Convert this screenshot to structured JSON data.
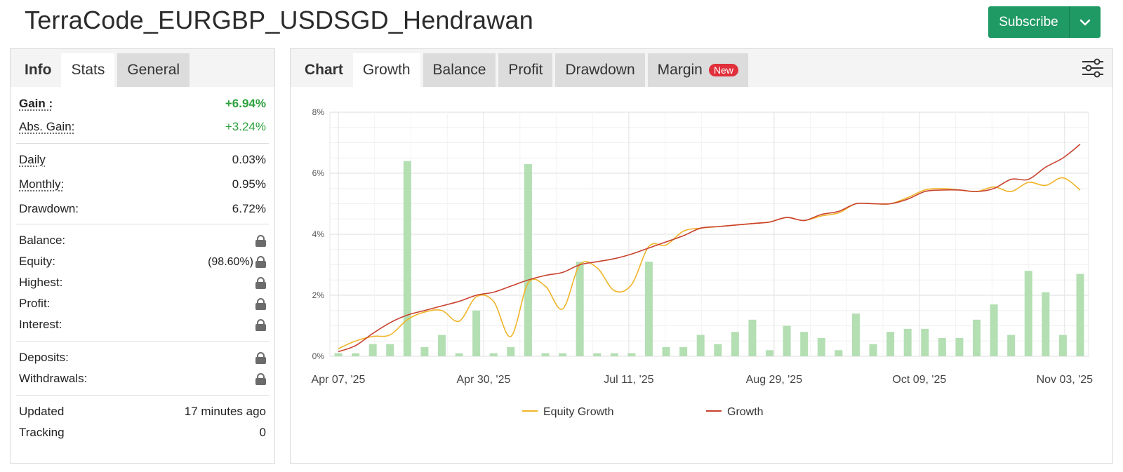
{
  "page": {
    "title": "TerraCode_EURGBP_USDSGD_Hendrawan",
    "subscribe_label": "Subscribe"
  },
  "left": {
    "tabs": [
      "Info",
      "Stats",
      "General"
    ],
    "gain": {
      "label": "Gain :",
      "value": "+6.94%"
    },
    "abs_gain": {
      "label": "Abs. Gain:",
      "value": "+3.24%"
    },
    "daily": {
      "label": "Daily",
      "value": "0.03%"
    },
    "monthly": {
      "label": "Monthly:",
      "value": "0.95%"
    },
    "drawdown": {
      "label": "Drawdown:",
      "value": "6.72%"
    },
    "balance": {
      "label": "Balance:"
    },
    "equity": {
      "label": "Equity:",
      "value": "(98.60%)"
    },
    "highest": {
      "label": "Highest:"
    },
    "profit": {
      "label": "Profit:"
    },
    "interest": {
      "label": "Interest:"
    },
    "deposits": {
      "label": "Deposits:"
    },
    "withdrawals": {
      "label": "Withdrawals:"
    },
    "updated": {
      "label": "Updated",
      "value": "17 minutes ago"
    },
    "tracking": {
      "label": "Tracking",
      "value": "0"
    }
  },
  "right": {
    "tabs": [
      "Chart",
      "Growth",
      "Balance",
      "Profit",
      "Drawdown",
      "Margin"
    ],
    "new_badge": "New"
  },
  "colors": {
    "equity_line": "#f0b429",
    "growth_line": "#c8412e",
    "bars": "#b3dfb3",
    "accent": "#1f9a64"
  },
  "chart_data": {
    "type": "line",
    "title": "",
    "ylabel": "",
    "ylim": [
      0,
      8
    ],
    "y_ticks": [
      "0%",
      "2%",
      "4%",
      "6%",
      "8%"
    ],
    "x_tick_labels": [
      "Apr 07, '25",
      "Apr 30, '25",
      "Jul 11, '25",
      "Aug 29, '25",
      "Oct 09, '25",
      "Nov 03, '25"
    ],
    "legend": [
      "Equity Growth",
      "Growth"
    ],
    "legend_position": "bottom",
    "bars_series": [
      0.1,
      0.1,
      0.4,
      0.4,
      6.4,
      0.3,
      0.7,
      0.1,
      1.5,
      0.1,
      0.3,
      6.3,
      0.1,
      0.1,
      3.1,
      0.1,
      0.1,
      0.1,
      3.1,
      0.3,
      0.3,
      0.7,
      0.4,
      0.8,
      1.2,
      0.2,
      1.0,
      0.8,
      0.6,
      0.2,
      1.4,
      0.4,
      0.8,
      0.9,
      0.9,
      0.6,
      0.6,
      1.2,
      1.7,
      0.7,
      2.8,
      2.1,
      0.7,
      2.7
    ],
    "series": [
      {
        "name": "Equity Growth",
        "values": [
          0.25,
          0.5,
          0.65,
          0.7,
          1.2,
          1.45,
          1.5,
          1.15,
          1.95,
          1.8,
          0.65,
          2.4,
          2.3,
          1.55,
          3.0,
          2.9,
          2.15,
          2.35,
          3.6,
          3.65,
          4.1,
          4.2,
          4.25,
          4.3,
          4.35,
          4.4,
          4.55,
          4.45,
          4.6,
          4.7,
          5.0,
          5.0,
          5.0,
          5.2,
          5.45,
          5.5,
          5.45,
          5.4,
          5.55,
          5.4,
          5.7,
          5.6,
          5.85,
          5.45
        ]
      },
      {
        "name": "Growth",
        "values": [
          0.15,
          0.35,
          0.75,
          1.1,
          1.35,
          1.5,
          1.65,
          1.8,
          2.0,
          2.1,
          2.3,
          2.5,
          2.65,
          2.75,
          3.0,
          3.1,
          3.2,
          3.35,
          3.55,
          3.75,
          3.95,
          4.2,
          4.25,
          4.3,
          4.35,
          4.4,
          4.55,
          4.45,
          4.65,
          4.75,
          5.0,
          5.0,
          5.0,
          5.15,
          5.4,
          5.45,
          5.45,
          5.4,
          5.5,
          5.8,
          5.8,
          6.2,
          6.5,
          6.95
        ]
      }
    ]
  }
}
